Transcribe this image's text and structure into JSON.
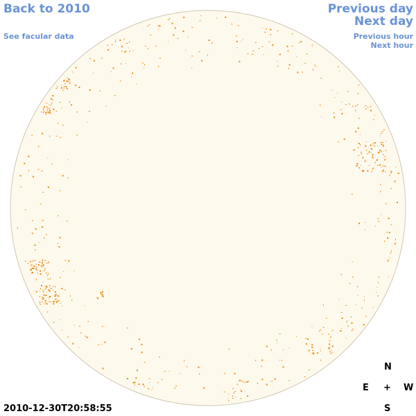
{
  "nav": {
    "back": "Back to 2010",
    "facular": "See facular data",
    "prev_day": "Previous day",
    "next_day": "Next day",
    "prev_hour": "Previous hour",
    "next_hour": "Next hour"
  },
  "compass": {
    "north": "N",
    "south": "S",
    "east": "E",
    "west": "W",
    "center": "+"
  },
  "timestamp": "2010-12-30T20:58:55",
  "colors": {
    "disk_fill": "#fef9ed",
    "disk_stroke": "#cfc7b3",
    "facula": "#e58a0f",
    "link": "#6a93d4"
  }
}
